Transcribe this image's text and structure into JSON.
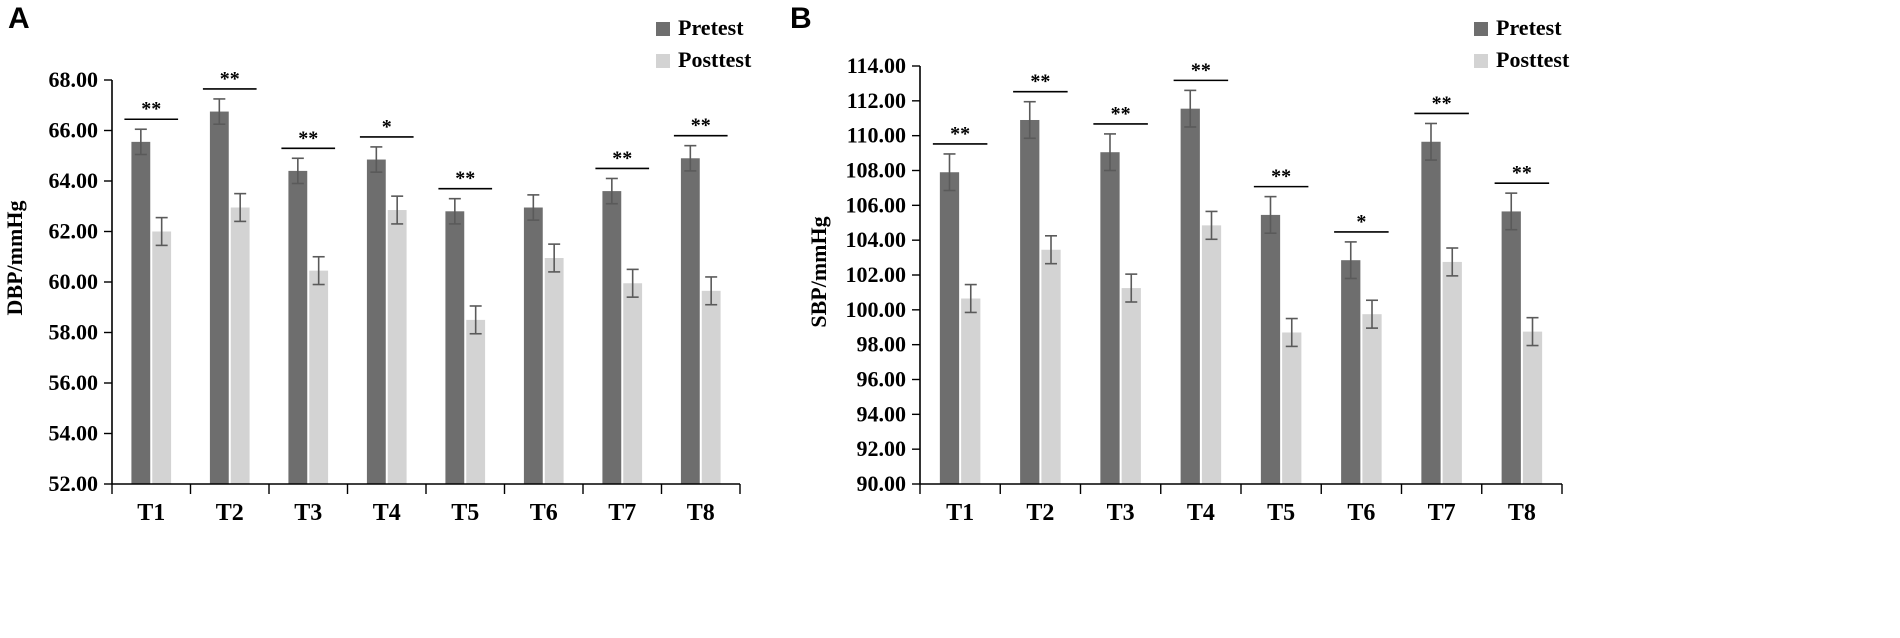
{
  "chart_data": [
    {
      "panel": "A",
      "type": "bar",
      "ylabel": "DBP/mmHg",
      "ylim": [
        52,
        68
      ],
      "yticks": [
        52,
        54,
        56,
        58,
        60,
        62,
        64,
        66,
        68
      ],
      "ytick_labels": [
        "52.00",
        "54.00",
        "56.00",
        "58.00",
        "60.00",
        "62.00",
        "64.00",
        "66.00",
        "68.00"
      ],
      "categories": [
        "T1",
        "T2",
        "T3",
        "T4",
        "T5",
        "T6",
        "T7",
        "T8"
      ],
      "series": [
        {
          "name": "Pretest",
          "color": "#6e6e6e",
          "values": [
            65.55,
            66.75,
            64.4,
            64.85,
            62.8,
            62.95,
            63.6,
            64.9
          ],
          "errors": [
            0.5,
            0.5,
            0.5,
            0.5,
            0.5,
            0.5,
            0.5,
            0.5
          ]
        },
        {
          "name": "Posttest",
          "color": "#d3d3d3",
          "values": [
            62.0,
            62.95,
            60.45,
            62.85,
            58.5,
            60.95,
            59.95,
            59.65
          ],
          "errors": [
            0.55,
            0.55,
            0.55,
            0.55,
            0.55,
            0.55,
            0.55,
            0.55
          ]
        }
      ],
      "significance": [
        "**",
        "**",
        "**",
        "*",
        "**",
        "",
        "**",
        "**"
      ],
      "legend": [
        "Pretest",
        "Posttest"
      ]
    },
    {
      "panel": "B",
      "type": "bar",
      "ylabel": "SBP/mmHg",
      "ylim": [
        90,
        114
      ],
      "yticks": [
        90,
        92,
        94,
        96,
        98,
        100,
        102,
        104,
        106,
        108,
        110,
        112,
        114
      ],
      "ytick_labels": [
        "90.00",
        "92.00",
        "94.00",
        "96.00",
        "98.00",
        "100.00",
        "102.00",
        "104.00",
        "106.00",
        "108.00",
        "110.00",
        "112.00",
        "114.00"
      ],
      "categories": [
        "T1",
        "T2",
        "T3",
        "T4",
        "T5",
        "T6",
        "T7",
        "T8"
      ],
      "series": [
        {
          "name": "Pretest",
          "color": "#6e6e6e",
          "values": [
            107.9,
            110.9,
            109.05,
            111.55,
            105.45,
            102.85,
            109.65,
            105.65
          ],
          "errors": [
            1.05,
            1.05,
            1.05,
            1.05,
            1.05,
            1.05,
            1.05,
            1.05
          ]
        },
        {
          "name": "Posttest",
          "color": "#d3d3d3",
          "values": [
            100.65,
            103.45,
            101.25,
            104.85,
            98.7,
            99.75,
            102.75,
            98.75
          ],
          "errors": [
            0.8,
            0.8,
            0.8,
            0.8,
            0.8,
            0.8,
            0.8,
            0.8
          ]
        }
      ],
      "significance": [
        "**",
        "**",
        "**",
        "**",
        "**",
        "*",
        "**",
        "**"
      ],
      "legend": [
        "Pretest",
        "Posttest"
      ]
    }
  ]
}
